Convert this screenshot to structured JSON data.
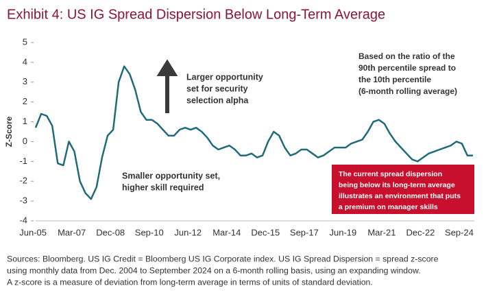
{
  "chart_data": {
    "type": "line",
    "title": "Exhibit 4: US IG Spread Dispersion Below Long-Term Average",
    "y_label": "Z-Score",
    "categories": [
      null,
      null,
      "Jun-05",
      null,
      null,
      null,
      null,
      null,
      null,
      "Mar-07",
      null,
      null,
      null,
      null,
      null,
      null,
      "Dec-08",
      null,
      null,
      null,
      null,
      null,
      null,
      "Sep-10",
      null,
      null,
      null,
      null,
      null,
      null,
      "Jun-12",
      null,
      null,
      null,
      null,
      null,
      null,
      "Mar-14",
      null,
      null,
      null,
      null,
      null,
      null,
      "Dec-15",
      null,
      null,
      null,
      null,
      null,
      null,
      "Sep-17",
      null,
      null,
      null,
      null,
      null,
      null,
      "Jun-19",
      null,
      null,
      null,
      null,
      null,
      null,
      "Mar-21",
      null,
      null,
      null,
      null,
      null,
      null,
      "Dec-22",
      null,
      null,
      null,
      null,
      null,
      null,
      "Sep-24"
    ],
    "series": [
      {
        "name": "US IG Spread Dispersion",
        "color": "#1f6b78",
        "values": [
          0.7,
          1.4,
          1.3,
          0.8,
          -1.1,
          -1.2,
          0.0,
          -0.5,
          -2.0,
          -2.6,
          -2.9,
          -2.3,
          -0.8,
          0.3,
          0.6,
          3.0,
          3.8,
          3.4,
          2.6,
          1.5,
          1.1,
          1.1,
          0.9,
          0.6,
          0.3,
          0.3,
          0.6,
          0.7,
          0.6,
          0.7,
          0.5,
          0.2,
          -0.2,
          -0.4,
          -0.3,
          -0.2,
          -0.4,
          -0.7,
          -0.7,
          -0.6,
          -0.8,
          -0.7,
          0.0,
          0.5,
          0.3,
          -0.3,
          -0.7,
          -0.6,
          -0.4,
          -0.4,
          -0.6,
          -0.8,
          -0.7,
          -0.5,
          -0.3,
          -0.3,
          -0.3,
          -0.1,
          0.0,
          0.1,
          0.5,
          1.0,
          1.1,
          0.9,
          0.4,
          0.0,
          -0.3,
          -0.6,
          -0.9,
          -1.0,
          -0.8,
          -0.6,
          -0.5,
          -0.4,
          -0.3,
          -0.2,
          0.0,
          -0.1,
          -0.7,
          -0.7
        ]
      }
    ],
    "ylim": [
      -4,
      5
    ],
    "yticks": [
      -4,
      -3,
      -2,
      -1,
      0,
      1,
      2,
      3,
      4,
      5
    ],
    "annotations": [
      {
        "lines": [
          "Larger opportunity",
          "set for security",
          "selection alpha"
        ]
      },
      {
        "lines": [
          "Based on the ratio of the",
          "90th percentile spread to",
          "the 10th percentile",
          "(6-month rolling average)"
        ]
      },
      {
        "lines": [
          "Smaller opportunity set,",
          "higher skill required"
        ]
      },
      {
        "lines": [
          "The current spread dispersion",
          "being below its long-term average",
          "illustrates an environment that puts",
          "a premium on manager skills"
        ]
      }
    ],
    "footnote": [
      "Sources: Bloomberg. US IG Credit = Bloomberg US IG Corporate index. US IG Spread Dispersion = spread z-score",
      "using monthly data from Dec. 2004 to September 2024 on a 6-month rolling basis, using an expanding window.",
      "A z-score is a measure of deviation from long-term average in terms of units of standard deviation."
    ]
  }
}
